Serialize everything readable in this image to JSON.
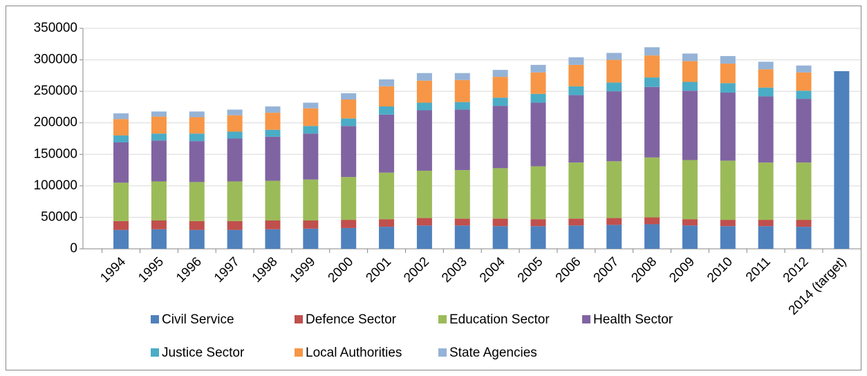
{
  "chart_data": {
    "type": "stacked_bar",
    "categories": [
      "1994",
      "1995",
      "1996",
      "1997",
      "1998",
      "1999",
      "2000",
      "2001",
      "2002",
      "2003",
      "2004",
      "2005",
      "2006",
      "2007",
      "2008",
      "2009",
      "2010",
      "2011",
      "2012",
      "2014 (target)"
    ],
    "series": [
      {
        "name": "Civil Service",
        "color": "#4f81bd",
        "values": [
          30000,
          31000,
          30000,
          30000,
          31000,
          32000,
          33000,
          35000,
          37000,
          37000,
          36000,
          36000,
          37000,
          38000,
          39000,
          37000,
          36000,
          36000,
          35000,
          282000
        ]
      },
      {
        "name": "Defence Sector",
        "color": "#c0504d",
        "values": [
          14000,
          14000,
          14000,
          14000,
          14000,
          13000,
          13000,
          12000,
          12000,
          11000,
          12000,
          11000,
          11000,
          11000,
          11000,
          10000,
          10000,
          10000,
          11000,
          null
        ]
      },
      {
        "name": "Education Sector",
        "color": "#9bbb59",
        "values": [
          61000,
          62000,
          62000,
          63000,
          63000,
          65000,
          68000,
          74000,
          75000,
          77000,
          80000,
          84000,
          89000,
          90000,
          95000,
          94000,
          94000,
          91000,
          91000,
          null
        ]
      },
      {
        "name": "Health Sector",
        "color": "#8064a2",
        "values": [
          64000,
          65000,
          65000,
          68000,
          70000,
          73000,
          81000,
          92000,
          96000,
          96000,
          99000,
          101000,
          107000,
          111000,
          112000,
          110000,
          108000,
          105000,
          101000,
          null
        ]
      },
      {
        "name": "Justice Sector",
        "color": "#4bacc6",
        "values": [
          11000,
          11000,
          12000,
          11000,
          11000,
          12000,
          12000,
          13000,
          12000,
          12000,
          13000,
          14000,
          14000,
          14000,
          15000,
          14000,
          15000,
          14000,
          13000,
          null
        ]
      },
      {
        "name": "Local Authorities",
        "color": "#f79646",
        "values": [
          26000,
          27000,
          26000,
          26000,
          27000,
          28000,
          30000,
          32000,
          35000,
          35000,
          33000,
          34000,
          34000,
          36000,
          35000,
          33000,
          31000,
          29000,
          29000,
          null
        ]
      },
      {
        "name": "State Agencies",
        "color": "#95b3d7",
        "values": [
          9000,
          8000,
          9000,
          9000,
          10000,
          9000,
          10000,
          11000,
          12000,
          11000,
          11000,
          12000,
          12000,
          11000,
          13000,
          12000,
          12000,
          12000,
          11000,
          null
        ]
      }
    ],
    "ylim": [
      0,
      350000
    ],
    "yticks": [
      0,
      50000,
      100000,
      150000,
      200000,
      250000,
      300000,
      350000
    ],
    "grid": true
  }
}
